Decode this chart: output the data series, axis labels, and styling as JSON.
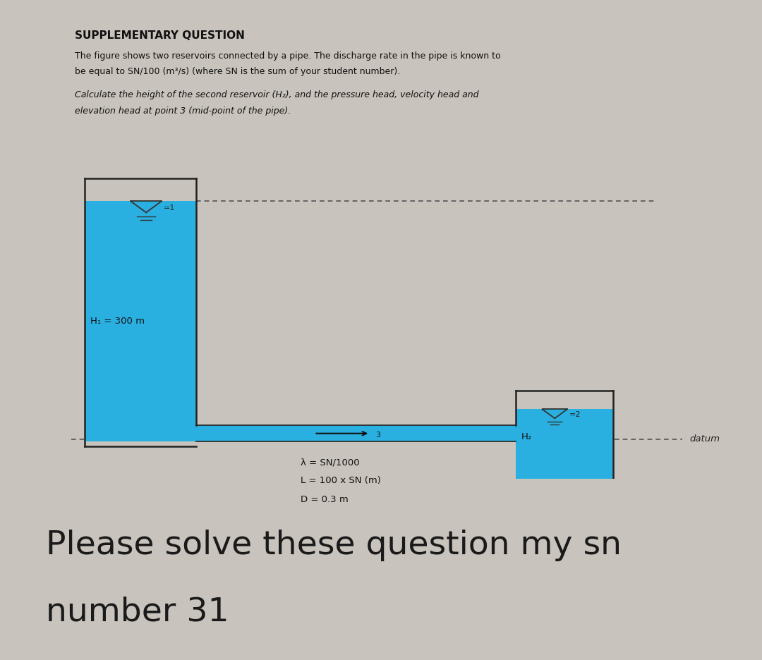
{
  "bg_outer": "#c8c3bc",
  "bg_card": "#e8e3dc",
  "bg_bottom": "#ffffff",
  "title": "SUPPLEMENTARY QUESTION",
  "body1_line1": "The figure shows two reservoirs connected by a pipe. The discharge rate in the pipe is known to",
  "body1_line2": "be equal to SN/100 (m³/s) (where SN is the sum of your student number).",
  "body2_line1": "Calculate the height of the second reservoir (H₂), and the pressure head, velocity head and",
  "body2_line2": "elevation head at point 3 (mid-point of the pipe).",
  "H1_label": "H₁ = 300 m",
  "H2_label": "H₂",
  "datum_label": "datum",
  "point1_label": "=1",
  "point2_label": "=2",
  "point3_label": "3",
  "lambda_label": "λ = SN/1000",
  "L_label": "L = 100 x SN (m)",
  "D_label": "D = 0.3 m",
  "water_color": "#2ab0e0",
  "water_edge": "#1888bb",
  "wall_color": "#222222",
  "bottom_text_line1": "Please solve these question my sn",
  "bottom_text_line2": "number 31"
}
